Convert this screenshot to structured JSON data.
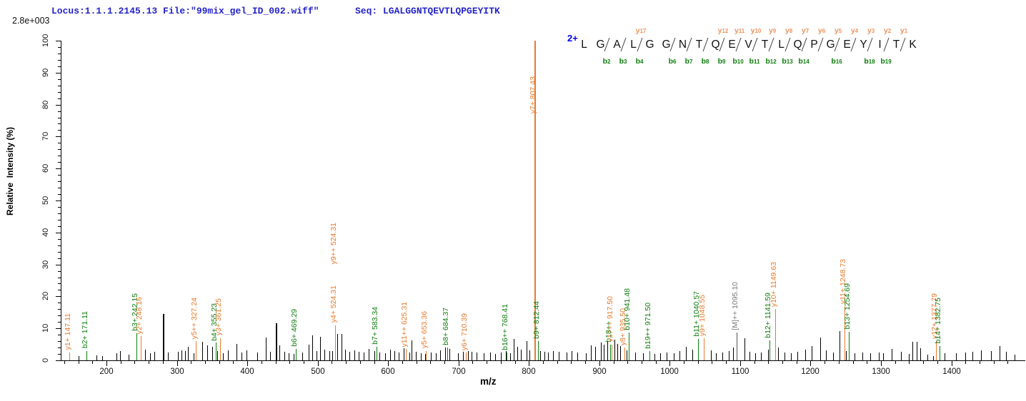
{
  "header": {
    "locus_file": "Locus:1.1.1.2145.13 File:\"99mix_gel_ID_002.wiff\"",
    "seq_label": "Seq: LGALGGNTQEVTLQPGEYITK",
    "max_intensity": "2.8e+003"
  },
  "axes": {
    "y_title": "Relative  Intensity (%)",
    "x_title": "m/z",
    "x_min": 135,
    "x_max": 1505,
    "x_ticks": [
      200,
      300,
      400,
      500,
      600,
      700,
      800,
      900,
      1000,
      1100,
      1200,
      1300,
      1400
    ],
    "x_minor_step": 20,
    "y_ticks": [
      0,
      10,
      20,
      30,
      40,
      50,
      60,
      70,
      80,
      90,
      100
    ],
    "y_minor_step": 2
  },
  "colors": {
    "y_ion": "#e87a2e",
    "b_ion": "#0e7e0e",
    "precursor_peak": "#555555",
    "precursor_label": "#7a7a7a",
    "seq_y_label": "#f2935c",
    "seq_b_label": "#0e7e0e",
    "noise": "#000000"
  },
  "peptide": {
    "charge": "2+",
    "sequence": "LGALGGNTQEVTLQPGEYITK",
    "y_ions": {
      "4": "y17",
      "9": "y12",
      "10": "y11",
      "11": "y10",
      "12": "y9",
      "13": "y8",
      "14": "y7",
      "15": "y6",
      "16": "y5",
      "17": "y4",
      "18": "y3",
      "19": "y2",
      "20": "y1"
    },
    "b_ions": {
      "2": "b2",
      "3": "b3",
      "4": "b4",
      "6": "b6",
      "7": "b7",
      "8": "b8",
      "9": "b9",
      "10": "b10",
      "11": "b11",
      "12": "b12",
      "13": "b13",
      "14": "b14",
      "16": "b16",
      "18": "b18",
      "19": "b19"
    }
  },
  "chart_data": {
    "type": "bar",
    "title": "MS/MS fragment ion spectrum",
    "xlabel": "m/z",
    "ylabel": "Relative Intensity (%)",
    "xlim": [
      135,
      1505
    ],
    "ylim": [
      0,
      100
    ],
    "base_peak_intensity": "2.8e+003",
    "annotated_peaks": [
      {
        "t": "y1+ 147.11",
        "mz": 147.11,
        "h": 2.5,
        "c": "y"
      },
      {
        "t": "b2+ 171.11",
        "mz": 171.11,
        "h": 3,
        "c": "b"
      },
      {
        "t": "b3+ 242.15",
        "mz": 242.15,
        "h": 8.5,
        "c": "b"
      },
      {
        "t": "y2+ 248.16",
        "mz": 248.16,
        "h": 7.5,
        "c": "y"
      },
      {
        "t": "y5++ 327.24",
        "mz": 327.24,
        "h": 6,
        "c": "y"
      },
      {
        "t": "b4+ 355.23",
        "mz": 355.23,
        "h": 5.5,
        "c": "b"
      },
      {
        "t": "y3+ 361.25",
        "mz": 361.25,
        "h": 7,
        "c": "y"
      },
      {
        "t": "b6+ 469.29",
        "mz": 469.29,
        "h": 3.5,
        "c": "b"
      },
      {
        "t": "y4+ 524.31",
        "t2": "y9++ 524.31",
        "mz": 524.31,
        "h": 11,
        "c": "y"
      },
      {
        "t": "b7+ 583.34",
        "mz": 583.34,
        "h": 4.3,
        "c": "b"
      },
      {
        "t": "y11++ 625.31",
        "mz": 625.31,
        "h": 3.5,
        "c": "y"
      },
      {
        "t": "y5+ 653.36",
        "mz": 653.36,
        "h": 3,
        "c": "y"
      },
      {
        "t": "b8+ 684.37",
        "mz": 684.37,
        "h": 4,
        "c": "b"
      },
      {
        "t": "y6+ 710.39",
        "mz": 710.39,
        "h": 2.5,
        "c": "y"
      },
      {
        "t": "b16++ 768.41",
        "mz": 768.41,
        "h": 2.5,
        "c": "b"
      },
      {
        "t": "y7+ 807.43",
        "mz": 807.43,
        "h": 100,
        "c": "y"
      },
      {
        "t": "b9+ 812.44",
        "mz": 812.44,
        "h": 6,
        "c": "b"
      },
      {
        "t": "b18++",
        "mz": 914.9,
        "h": 5,
        "c": "b"
      },
      {
        "t": "y17++ 917.50",
        "mz": 917.5,
        "h": 5,
        "c": "y"
      },
      {
        "t": "y8+ 935.50",
        "mz": 935.5,
        "h": 4,
        "c": "y"
      },
      {
        "t": "b10+ 941.48",
        "mz": 941.48,
        "h": 8.8,
        "c": "b"
      },
      {
        "t": "b19++ 971.50",
        "mz": 971.5,
        "h": 3,
        "c": "b"
      },
      {
        "t": "b11+ 1040.57",
        "mz": 1040.57,
        "h": 6.7,
        "c": "b"
      },
      {
        "t": "y9+ 1048.55",
        "mz": 1048.55,
        "h": 7,
        "c": "y"
      },
      {
        "t": "[M]++ 1095.10",
        "mz": 1095.1,
        "h": 8.7,
        "c": "M"
      },
      {
        "t": "b12+ 1141.59",
        "mz": 1141.59,
        "h": 6.3,
        "c": "b"
      },
      {
        "t": "y10+ 1149.63",
        "mz": 1149.63,
        "h": 16,
        "c": "y"
      },
      {
        "t": "y11+ 1248.73",
        "mz": 1248.73,
        "h": 17,
        "c": "y"
      },
      {
        "t": "b13+ 1254.69",
        "mz": 1254.69,
        "h": 9,
        "c": "b"
      },
      {
        "t": "y12+ 1377.79",
        "mz": 1377.79,
        "h": 6,
        "c": "y"
      },
      {
        "t": "b14+ 1382.75",
        "mz": 1382.75,
        "h": 4.5,
        "c": "b"
      }
    ],
    "noise_peaks": [
      [
        160,
        1.4
      ],
      [
        186,
        1.6
      ],
      [
        194,
        1.4
      ],
      [
        214,
        2.2
      ],
      [
        219,
        3
      ],
      [
        231,
        1.8
      ],
      [
        255,
        3.4
      ],
      [
        262,
        2.2
      ],
      [
        268,
        2.6
      ],
      [
        280,
        14.5
      ],
      [
        287,
        2.4
      ],
      [
        301,
        2.7
      ],
      [
        306,
        3.2
      ],
      [
        312,
        3
      ],
      [
        316,
        4.2
      ],
      [
        324,
        2.2
      ],
      [
        336,
        5.8
      ],
      [
        343,
        4.6
      ],
      [
        350,
        4.2
      ],
      [
        357,
        3
      ],
      [
        365,
        2.2
      ],
      [
        372,
        3.2
      ],
      [
        385,
        5.2
      ],
      [
        392,
        2.4
      ],
      [
        399,
        3.2
      ],
      [
        414,
        2.4
      ],
      [
        426,
        7.2
      ],
      [
        432,
        2.6
      ],
      [
        440,
        11.7
      ],
      [
        446,
        4.6
      ],
      [
        453,
        2.6
      ],
      [
        459,
        2.2
      ],
      [
        466,
        2
      ],
      [
        478,
        2.4
      ],
      [
        487,
        5
      ],
      [
        492,
        7.8
      ],
      [
        498,
        3
      ],
      [
        503,
        7.4
      ],
      [
        509,
        3.4
      ],
      [
        517,
        2.8
      ],
      [
        521,
        3
      ],
      [
        528,
        8.2
      ],
      [
        534,
        8.3
      ],
      [
        539,
        3.4
      ],
      [
        545,
        2.6
      ],
      [
        552,
        3.2
      ],
      [
        558,
        2.6
      ],
      [
        565,
        2.4
      ],
      [
        572,
        3.6
      ],
      [
        580,
        2.8
      ],
      [
        588,
        2.4
      ],
      [
        596,
        2.2
      ],
      [
        603,
        3.4
      ],
      [
        609,
        2.8
      ],
      [
        615,
        2.4
      ],
      [
        622,
        3.8
      ],
      [
        630,
        2.4
      ],
      [
        633,
        6.3
      ],
      [
        639,
        2.6
      ],
      [
        646,
        2.2
      ],
      [
        653,
        2
      ],
      [
        661,
        2.4
      ],
      [
        668,
        2.2
      ],
      [
        674,
        3.2
      ],
      [
        681,
        4
      ],
      [
        687,
        3.6
      ],
      [
        699,
        2.2
      ],
      [
        706,
        2.6
      ],
      [
        713,
        3
      ],
      [
        719,
        2.6
      ],
      [
        726,
        2.4
      ],
      [
        736,
        2.2
      ],
      [
        745,
        2.4
      ],
      [
        752,
        2
      ],
      [
        760,
        2.4
      ],
      [
        767,
        2.8
      ],
      [
        773,
        2.2
      ],
      [
        778,
        6.7
      ],
      [
        783,
        4.2
      ],
      [
        789,
        3.4
      ],
      [
        797,
        6
      ],
      [
        801,
        3.2
      ],
      [
        816,
        3
      ],
      [
        822,
        2.6
      ],
      [
        827,
        2.4
      ],
      [
        834,
        2.8
      ],
      [
        842,
        2.6
      ],
      [
        853,
        2.4
      ],
      [
        861,
        2.8
      ],
      [
        869,
        2.4
      ],
      [
        881,
        2.2
      ],
      [
        888,
        4.6
      ],
      [
        894,
        4.2
      ],
      [
        902,
        5.6
      ],
      [
        906,
        5
      ],
      [
        911,
        5.8
      ],
      [
        921,
        6.4
      ],
      [
        926,
        5.2
      ],
      [
        930,
        4.4
      ],
      [
        939,
        3.2
      ],
      [
        951,
        2.4
      ],
      [
        962,
        2.2
      ],
      [
        978,
        2
      ],
      [
        986,
        2.2
      ],
      [
        996,
        2.4
      ],
      [
        1006,
        2.2
      ],
      [
        1014,
        3
      ],
      [
        1023,
        4.2
      ],
      [
        1032,
        3.4
      ],
      [
        1058,
        3.2
      ],
      [
        1066,
        2.2
      ],
      [
        1075,
        2.4
      ],
      [
        1084,
        3
      ],
      [
        1090,
        4.1
      ],
      [
        1106,
        6.9
      ],
      [
        1113,
        2.6
      ],
      [
        1121,
        2.2
      ],
      [
        1130,
        2.4
      ],
      [
        1140,
        3.4
      ],
      [
        1154,
        4
      ],
      [
        1163,
        2.4
      ],
      [
        1172,
        2.2
      ],
      [
        1181,
        2.6
      ],
      [
        1192,
        3.4
      ],
      [
        1202,
        4.5
      ],
      [
        1214,
        7.1
      ],
      [
        1222,
        3.2
      ],
      [
        1232,
        2.4
      ],
      [
        1241,
        9.2
      ],
      [
        1250,
        3
      ],
      [
        1262,
        2.2
      ],
      [
        1274,
        2.4
      ],
      [
        1285,
        2.2
      ],
      [
        1297,
        2.5
      ],
      [
        1303,
        2.2
      ],
      [
        1315,
        3.6
      ],
      [
        1328,
        2.6
      ],
      [
        1340,
        2
      ],
      [
        1345,
        5.9
      ],
      [
        1351,
        5.7
      ],
      [
        1356,
        3.7
      ],
      [
        1366,
        1.8
      ],
      [
        1374,
        1.4
      ],
      [
        1390,
        2.2
      ],
      [
        1407,
        2.2
      ],
      [
        1420,
        2.4
      ],
      [
        1430,
        2.6
      ],
      [
        1442,
        3.2
      ],
      [
        1456,
        3
      ],
      [
        1468,
        4.4
      ],
      [
        1478,
        2.6
      ],
      [
        1490,
        1.8
      ]
    ]
  }
}
